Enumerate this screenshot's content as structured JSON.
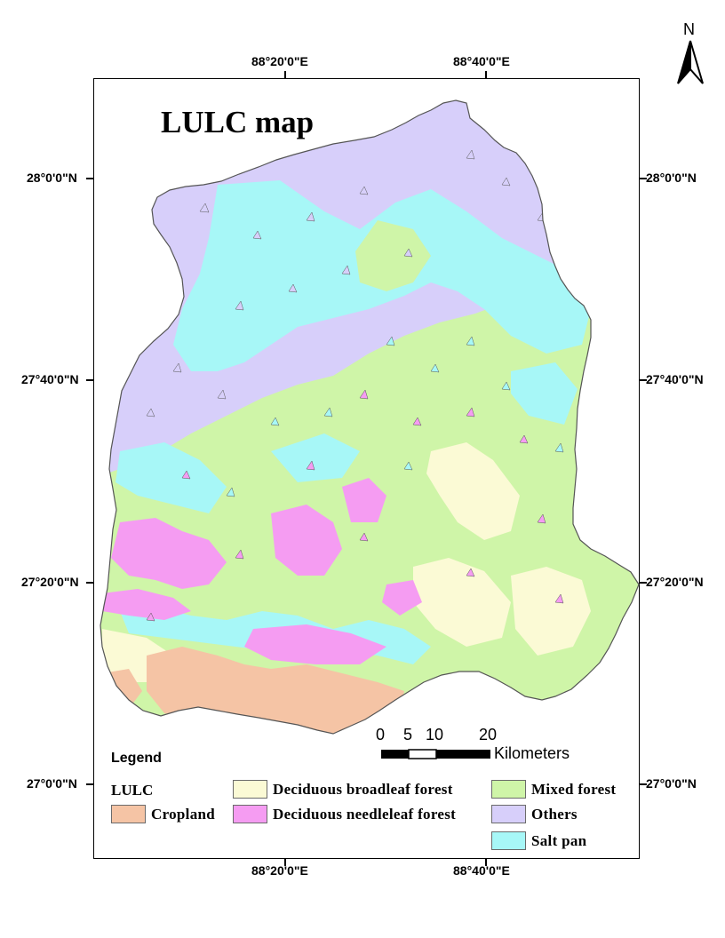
{
  "title": "LULC map",
  "north_label": "N",
  "graticule": {
    "longitudes": [
      "88°20'0\"E",
      "88°40'0\"E"
    ],
    "latitudes": [
      "28°0'0\"N",
      "27°40'0\"N",
      "27°20'0\"N",
      "27°0'0\"N"
    ]
  },
  "legend": {
    "title": "Legend",
    "field": "LULC",
    "classes": [
      {
        "label": "Cropland",
        "color": "#f5c4a5"
      },
      {
        "label": "Deciduous broadleaf forest",
        "color": "#fbfad5"
      },
      {
        "label": "Deciduous needleleaf forest",
        "color": "#f59cf2"
      },
      {
        "label": "Mixed forest",
        "color": "#cff5a8"
      },
      {
        "label": "Others",
        "color": "#d7cffa"
      },
      {
        "label": "Salt pan",
        "color": "#a7f7f7"
      }
    ]
  },
  "scale_bar": {
    "ticks": [
      "0",
      "5",
      "10",
      "20"
    ],
    "unit": "Kilometers"
  }
}
